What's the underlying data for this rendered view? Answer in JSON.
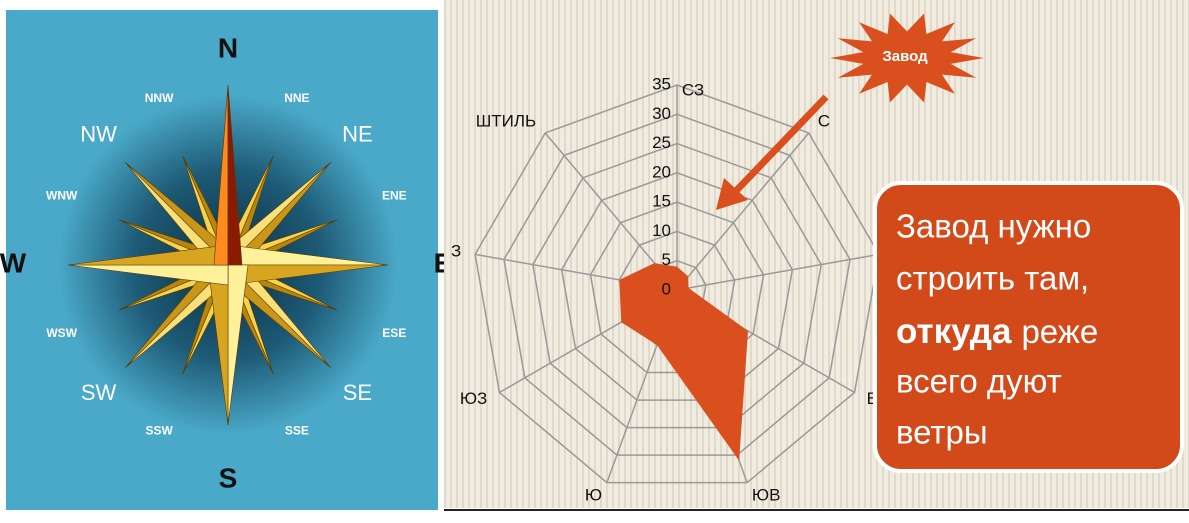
{
  "compass": {
    "labels": [
      "N",
      "NNE",
      "NE",
      "ENE",
      "E",
      "ESE",
      "SE",
      "SSE",
      "S",
      "SSW",
      "SW",
      "WSW",
      "W",
      "WNW",
      "NW",
      "NNW"
    ]
  },
  "chart_data": {
    "type": "radar",
    "categories": [
      "СЗ",
      "С",
      null,
      "В",
      "ЮВ",
      "Ю",
      "ЮЗ",
      "З",
      "ШТИЛЬ"
    ],
    "values": [
      4,
      3,
      2,
      14,
      31,
      10,
      11,
      10,
      6
    ],
    "color": "#d9501e",
    "ylim": [
      0,
      35
    ],
    "yticks": [
      0,
      5,
      10,
      15,
      20,
      25,
      30,
      35
    ],
    "grid": true
  },
  "callout": {
    "burst": "Завод",
    "text": [
      "Завод нужно",
      "строить там,",
      "откуда",
      "реже",
      "всего дуют",
      "ветры"
    ]
  }
}
